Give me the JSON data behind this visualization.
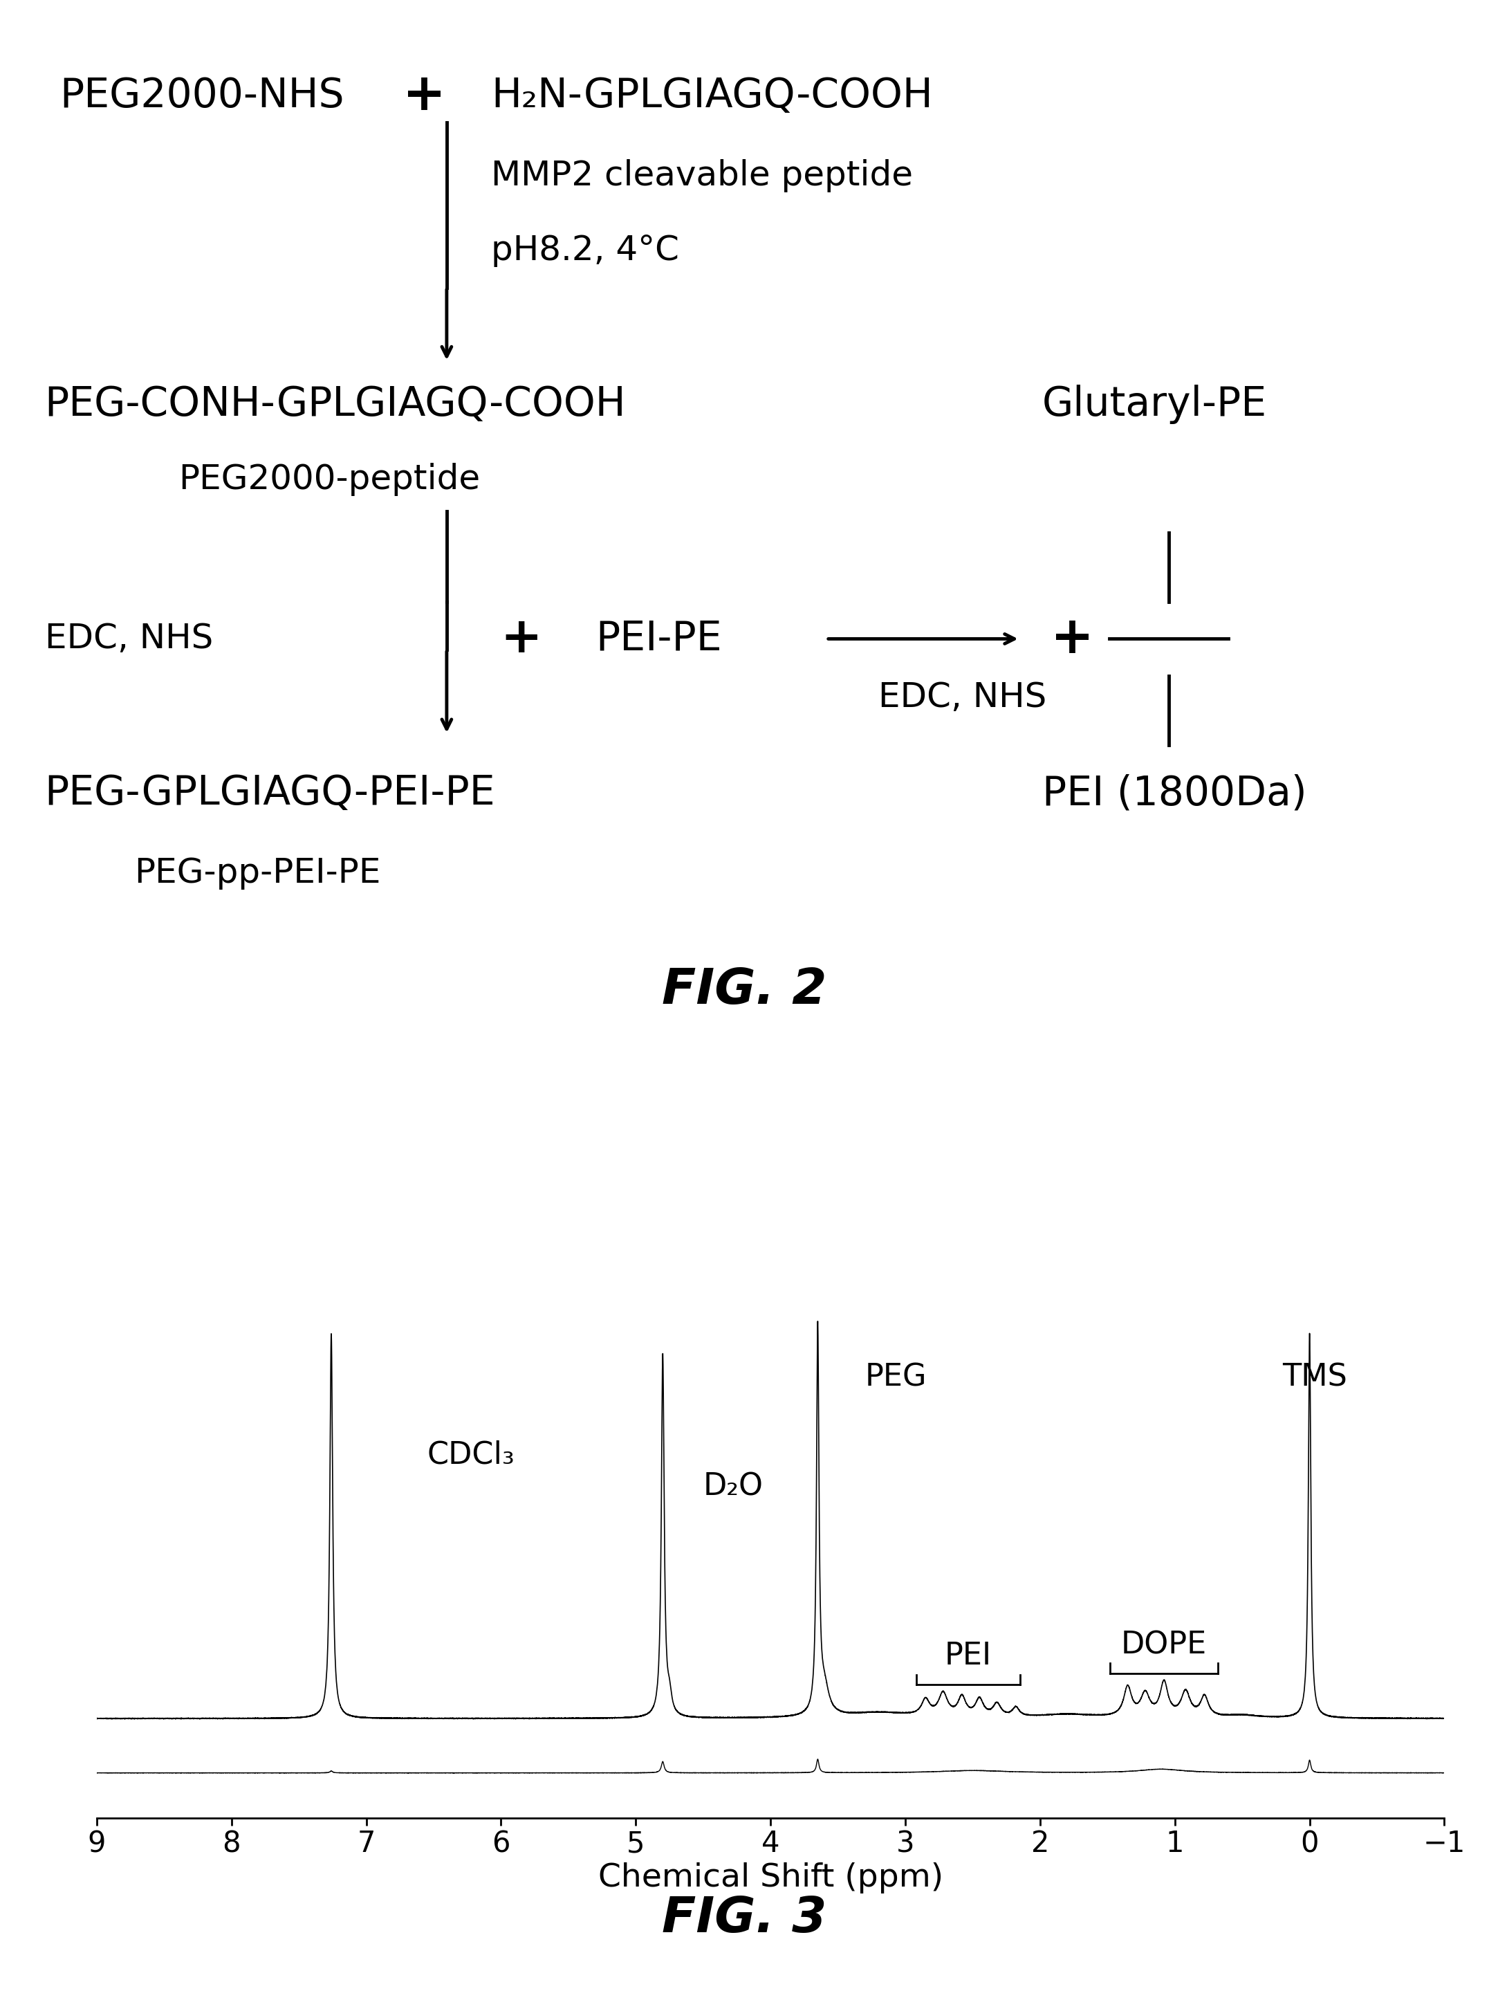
{
  "background_color": "#ffffff",
  "fig2": {
    "title": "FIG. 2",
    "fs_main": 42,
    "fs_sub": 36,
    "fs_fig": 52
  },
  "fig3": {
    "title": "FIG. 3",
    "xlabel": "Chemical Shift (ppm)",
    "xticks": [
      9,
      8,
      7,
      6,
      5,
      4,
      3,
      2,
      1,
      0,
      -1
    ],
    "fs_fig": 52,
    "fs_ann": 32,
    "fs_xlabel": 34,
    "fs_tick": 30
  }
}
